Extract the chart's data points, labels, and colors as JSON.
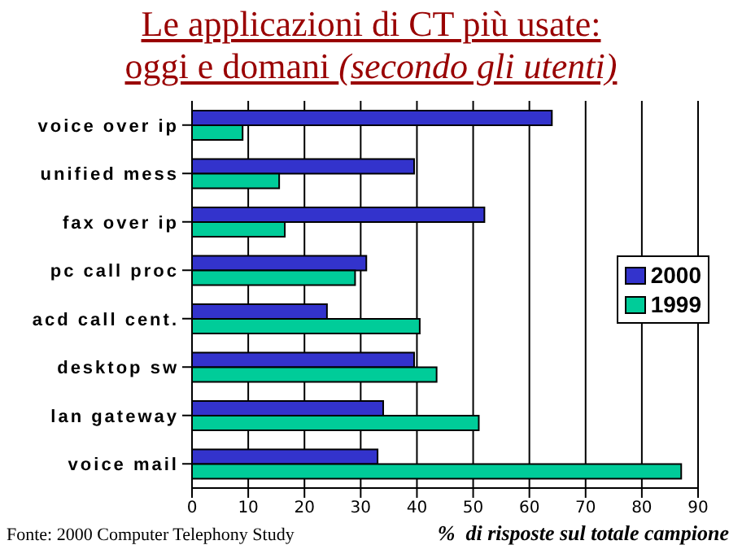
{
  "chart_data": {
    "type": "bar",
    "orientation": "horizontal",
    "title": "Le applicazioni di CT più usate:",
    "subtitle": "oggi e domani (secondo gli utenti)",
    "xlabel": "%  di risposte sul totale campione",
    "annotations": [
      "Fonte: 2000 Computer Telephony Study"
    ],
    "categories": [
      "voice over ip",
      "unified mess",
      "fax over ip",
      "pc call proc",
      "acd call cent.",
      "desktop sw",
      "lan gateway",
      "voice mail"
    ],
    "series": [
      {
        "name": "2000",
        "color": "#3333cc",
        "values": [
          64,
          39.5,
          52,
          31,
          24,
          39.5,
          34,
          33
        ]
      },
      {
        "name": "1999",
        "color": "#00cc99",
        "values": [
          9,
          15.5,
          16.5,
          29,
          40.5,
          43.5,
          51,
          87
        ]
      }
    ],
    "xlim": [
      0,
      90
    ],
    "xticks": [
      0,
      10,
      20,
      30,
      40,
      50,
      60,
      70,
      80,
      90
    ],
    "grid": "x",
    "legend": "right"
  }
}
